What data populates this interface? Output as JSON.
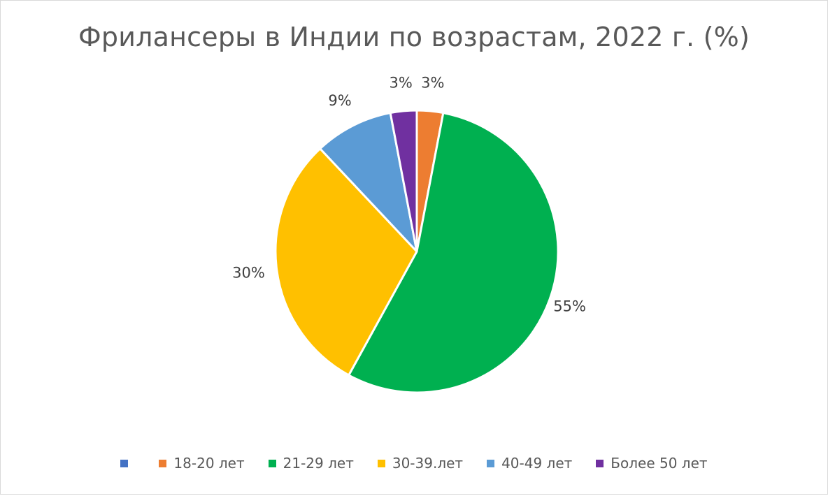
{
  "chart_data": {
    "type": "pie",
    "title": "Фрилансеры в Индии по возрастам, 2022 г. (%)",
    "legend_position": "bottom",
    "slices": [
      {
        "label": "",
        "value": 0,
        "color": "#4472C4",
        "data_label": ""
      },
      {
        "label": "18-20 лет",
        "value": 3,
        "color": "#ED7D31",
        "data_label": "3%"
      },
      {
        "label": "21-29 лет",
        "value": 55,
        "color": "#00B050",
        "data_label": "55%"
      },
      {
        "label": "30-39.лет",
        "value": 30,
        "color": "#FFC000",
        "data_label": "30%"
      },
      {
        "label": "40-49 лет",
        "value": 9,
        "color": "#5B9BD5",
        "data_label": "9%"
      },
      {
        "label": "Более 50 лет",
        "value": 3,
        "color": "#7030A0",
        "data_label": "3%"
      }
    ]
  }
}
